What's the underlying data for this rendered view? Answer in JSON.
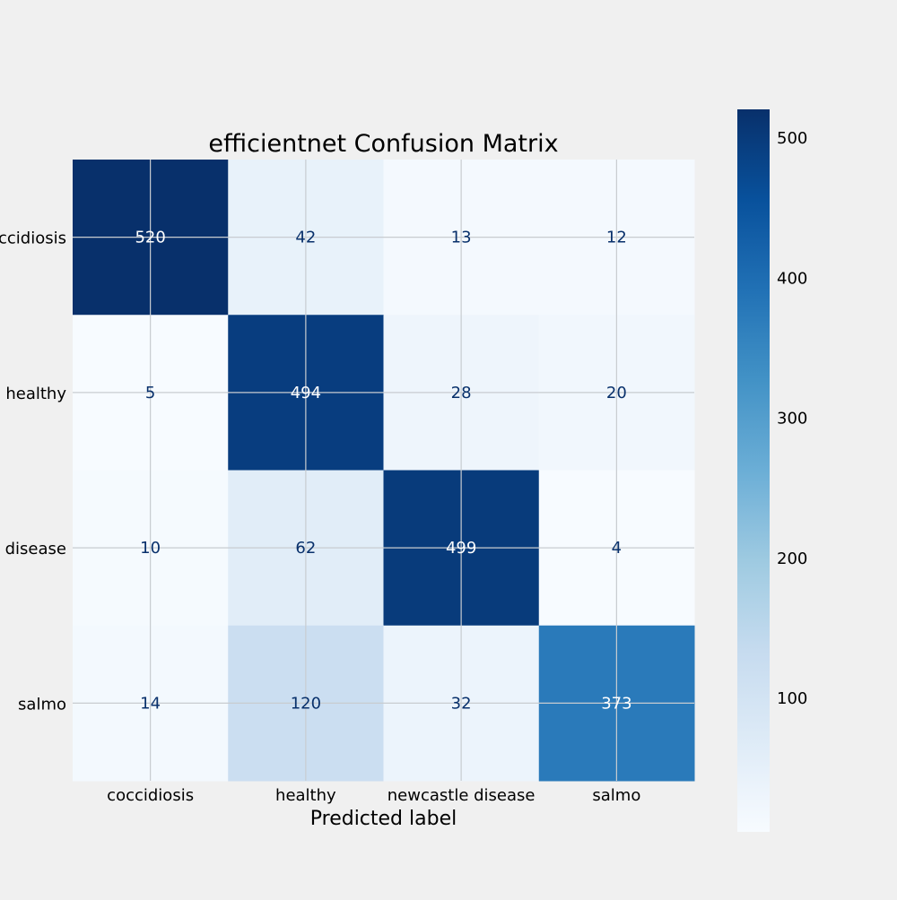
{
  "chart_data": {
    "type": "heatmap",
    "title": "efficientnet Confusion Matrix",
    "xlabel": "Predicted label",
    "ylabel": "",
    "x_categories": [
      "coccidiosis",
      "healthy",
      "newcastle disease",
      "salmo"
    ],
    "y_categories": [
      "coccidiosis",
      "healthy",
      "newcastle disease",
      "salmo"
    ],
    "values": [
      [
        520,
        42,
        13,
        12
      ],
      [
        5,
        494,
        28,
        20
      ],
      [
        10,
        62,
        499,
        4
      ],
      [
        14,
        120,
        32,
        373
      ]
    ],
    "colormap": "Blues",
    "colorbar": {
      "min": 4,
      "max": 520,
      "ticks": [
        100,
        200,
        300,
        400,
        500
      ]
    },
    "grid": true,
    "colors": {
      "background": "#f0f0f0",
      "grid": "#c8ccd0",
      "text_dark": "#08306b",
      "text_light": "#ffffff"
    }
  }
}
